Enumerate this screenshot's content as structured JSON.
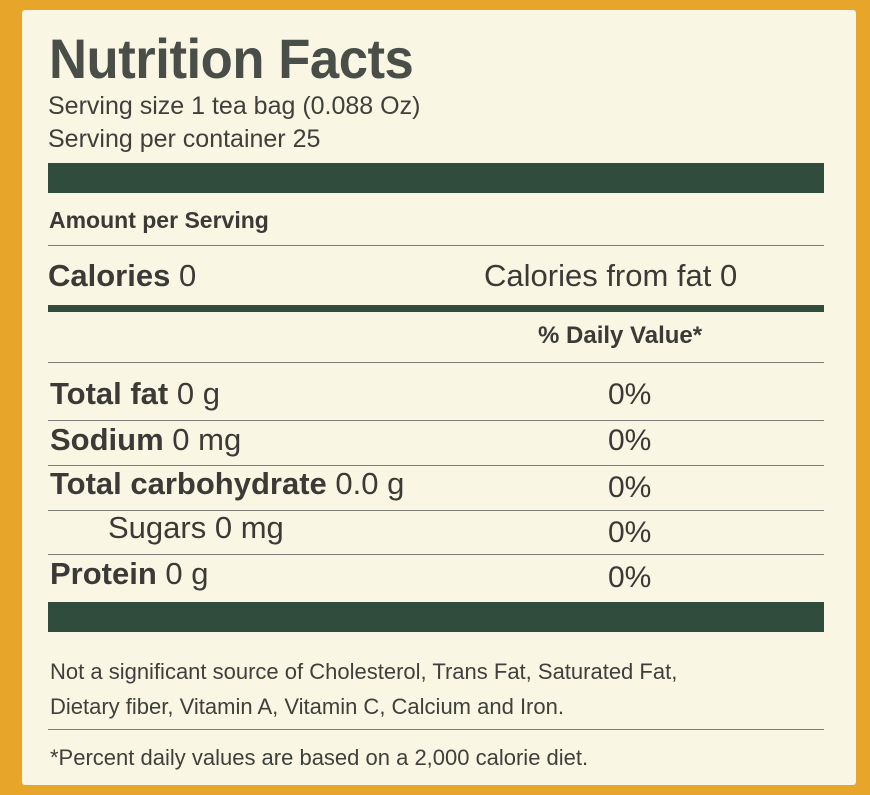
{
  "title": "Nutrition Facts",
  "serving_size": "Serving size 1 tea bag (0.088 Oz)",
  "servings_per_container": "Serving per container 25",
  "amount_per_serving": "Amount per Serving",
  "calories": {
    "label": "Calories",
    "value": "0"
  },
  "calories_from_fat": "Calories from fat 0",
  "daily_value_header": "% Daily Value*",
  "nutrients": [
    {
      "label": "Total fat",
      "amount": "0 g",
      "dv": "0%"
    },
    {
      "label": "Sodium",
      "amount": "0 mg",
      "dv": "0%"
    },
    {
      "label": "Total carbohydrate",
      "amount": "0.0 g",
      "dv": "0%"
    },
    {
      "label": "Sugars 0 mg",
      "amount": "",
      "dv": "0%"
    },
    {
      "label": "Protein",
      "amount": "0 g",
      "dv": "0%"
    }
  ],
  "note_line1": "Not a significant source of Cholesterol, Trans Fat, Saturated Fat,",
  "note_line2": "Dietary fiber, Vitamin A, Vitamin C, Calcium and Iron.",
  "footnote": "*Percent daily values are based on a 2,000 calorie diet.",
  "colors": {
    "background": "#e7a629",
    "label": "#f9f7e4",
    "bar": "#2f4c3c",
    "text": "#3b3a36"
  }
}
